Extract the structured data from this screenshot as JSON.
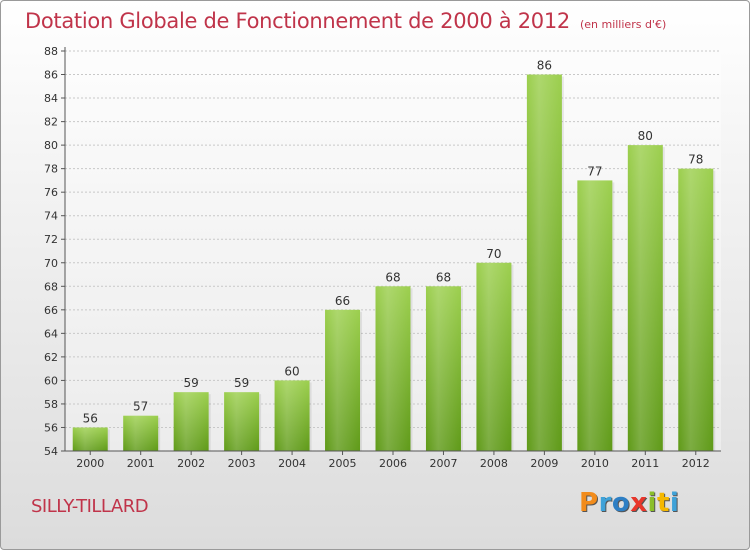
{
  "title": "Dotation Globale de Fonctionnement de 2000 à 2012",
  "unit": "(en milliers d'€)",
  "commune": "SILLY-TILLARD",
  "logo": {
    "letters": [
      "P",
      "r",
      "o",
      "x",
      "i",
      "t",
      "i"
    ],
    "colors": [
      "#f28c1c",
      "#3fa2d8",
      "#2e7fc4",
      "#e8362b",
      "#8bbf2a",
      "#f5b800",
      "#3fa2d8"
    ]
  },
  "chart_data": {
    "type": "bar",
    "categories": [
      "2000",
      "2001",
      "2002",
      "2003",
      "2004",
      "2005",
      "2006",
      "2007",
      "2008",
      "2009",
      "2010",
      "2011",
      "2012"
    ],
    "values": [
      56,
      57,
      59,
      59,
      60,
      66,
      68,
      68,
      70,
      86,
      77,
      80,
      78
    ],
    "ylim": [
      54,
      88
    ],
    "yticks": [
      54,
      56,
      58,
      60,
      62,
      64,
      66,
      68,
      70,
      72,
      74,
      76,
      78,
      80,
      82,
      84,
      86,
      88
    ],
    "grid": true,
    "bar_color": "#7cb82f"
  }
}
